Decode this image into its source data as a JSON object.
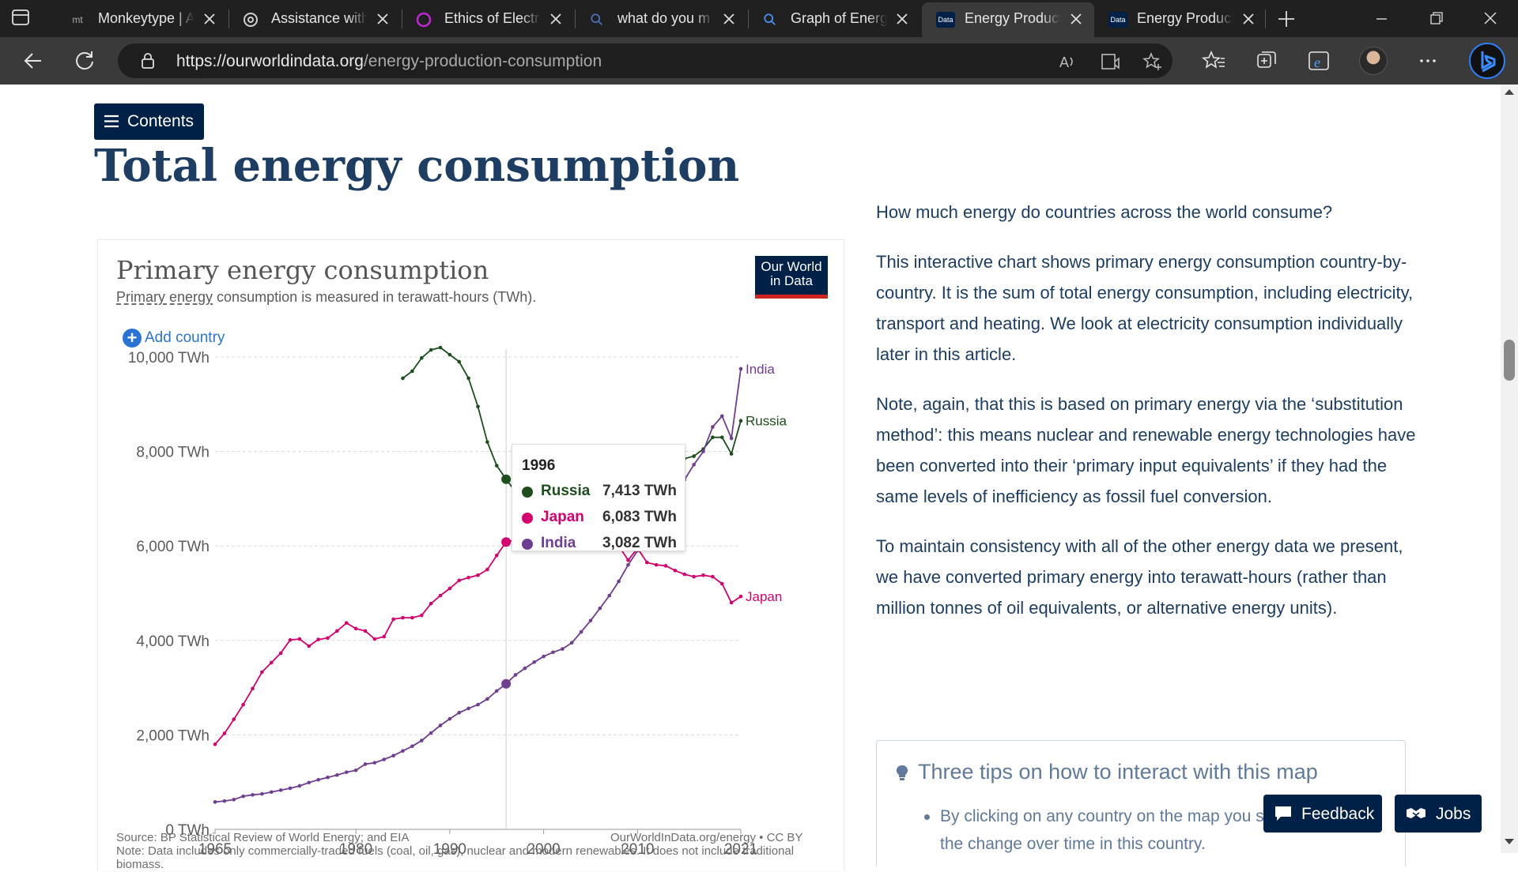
{
  "browser": {
    "tabs": [
      {
        "title": "Monkeytype | A",
        "favicon": "mt"
      },
      {
        "title": "Assistance with",
        "favicon": "chatgpt-icon"
      },
      {
        "title": "Ethics of Electri",
        "favicon": "ring-icon"
      },
      {
        "title": "what do you m",
        "favicon": "search-icon"
      },
      {
        "title": "Graph of Energ",
        "favicon": "search-icon"
      },
      {
        "title": "Energy Product",
        "favicon": "Data",
        "active": true
      },
      {
        "title": "Energy Product",
        "favicon": "Data"
      }
    ],
    "url_host": "https://ourworldindata.org",
    "url_path": "/energy-production-consumption"
  },
  "page": {
    "contents_label": "Contents",
    "title": "Total energy consumption"
  },
  "chart": {
    "title": "Primary energy consumption",
    "subtitle_link": "Primary energy",
    "subtitle_rest": " consumption is measured in terawatt-hours (TWh).",
    "logo_line1": "Our World",
    "logo_line2": "in Data",
    "add_country": "Add country",
    "source": "Source: BP Statistical Review of World Energy; and EIA",
    "note": "Note: Data includes only commercially-traded fuels (coal, oil, gas), nuclear and modern renewables. It does not include traditional biomass.",
    "credit": "OurWorldInData.org/energy • CC BY",
    "tooltip": {
      "year": "1996",
      "rows": [
        {
          "name": "Russia",
          "value": "7,413 TWh",
          "color": "#1e4d1e"
        },
        {
          "name": "Japan",
          "value": "6,083 TWh",
          "color": "#d6006e"
        },
        {
          "name": "India",
          "value": "3,082 TWh",
          "color": "#6d3e91"
        }
      ]
    }
  },
  "chart_data": {
    "type": "line",
    "title": "Primary energy consumption",
    "ylabel": "TWh",
    "ylim": [
      0,
      10000
    ],
    "yticks": [
      "0 TWh",
      "2,000 TWh",
      "4,000 TWh",
      "6,000 TWh",
      "8,000 TWh",
      "10,000 TWh"
    ],
    "xticks": [
      "1965",
      "1980",
      "1990",
      "2000",
      "2010",
      "2021"
    ],
    "grid": true,
    "highlight_year": 1996,
    "series": [
      {
        "name": "Russia",
        "color": "#1e4d1e",
        "x": [
          1985,
          1986,
          1987,
          1988,
          1989,
          1990,
          1991,
          1992,
          1993,
          1994,
          1995,
          1996,
          1997,
          1998,
          1999,
          2000,
          2001,
          2002,
          2003,
          2004,
          2005,
          2006,
          2007,
          2008,
          2009,
          2010,
          2011,
          2012,
          2013,
          2014,
          2015,
          2016,
          2017,
          2018,
          2019,
          2020,
          2021
        ],
        "y": [
          9550,
          9700,
          9980,
          10150,
          10200,
          10050,
          9900,
          9550,
          8950,
          8200,
          7700,
          7413,
          7150,
          7100,
          7250,
          7350,
          7400,
          7450,
          7550,
          7600,
          7650,
          7780,
          7800,
          7850,
          7550,
          7800,
          8050,
          8050,
          7950,
          7950,
          7850,
          7900,
          8050,
          8300,
          8300,
          7950,
          8650
        ]
      },
      {
        "name": "Japan",
        "color": "#d6006e",
        "x": [
          1965,
          1966,
          1967,
          1968,
          1969,
          1970,
          1971,
          1972,
          1973,
          1974,
          1975,
          1976,
          1977,
          1978,
          1979,
          1980,
          1981,
          1982,
          1983,
          1984,
          1985,
          1986,
          1987,
          1988,
          1989,
          1990,
          1991,
          1992,
          1993,
          1994,
          1995,
          1996,
          1997,
          1998,
          1999,
          2000,
          2001,
          2002,
          2003,
          2004,
          2005,
          2006,
          2007,
          2008,
          2009,
          2010,
          2011,
          2012,
          2013,
          2014,
          2015,
          2016,
          2017,
          2018,
          2019,
          2020,
          2021
        ],
        "y": [
          1800,
          2030,
          2330,
          2640,
          2980,
          3330,
          3530,
          3730,
          4010,
          4030,
          3880,
          4020,
          4050,
          4200,
          4370,
          4250,
          4200,
          4030,
          4080,
          4450,
          4480,
          4480,
          4530,
          4780,
          4950,
          5100,
          5270,
          5330,
          5380,
          5500,
          5800,
          6083,
          6130,
          6080,
          6200,
          6300,
          6250,
          6200,
          6180,
          6280,
          6300,
          6250,
          6180,
          6000,
          5700,
          5950,
          5650,
          5600,
          5580,
          5480,
          5400,
          5350,
          5380,
          5350,
          5200,
          4800,
          4930
        ]
      },
      {
        "name": "India",
        "color": "#6d3e91",
        "x": [
          1965,
          1966,
          1967,
          1968,
          1969,
          1970,
          1971,
          1972,
          1973,
          1974,
          1975,
          1976,
          1977,
          1978,
          1979,
          1980,
          1981,
          1982,
          1983,
          1984,
          1985,
          1986,
          1987,
          1988,
          1989,
          1990,
          1991,
          1992,
          1993,
          1994,
          1995,
          1996,
          1997,
          1998,
          1999,
          2000,
          2001,
          2002,
          2003,
          2004,
          2005,
          2006,
          2007,
          2008,
          2009,
          2010,
          2011,
          2012,
          2013,
          2014,
          2015,
          2016,
          2017,
          2018,
          2019,
          2020,
          2021
        ],
        "y": [
          580,
          600,
          630,
          700,
          730,
          750,
          790,
          830,
          870,
          920,
          990,
          1050,
          1100,
          1150,
          1210,
          1250,
          1380,
          1410,
          1480,
          1560,
          1660,
          1760,
          1880,
          2040,
          2200,
          2340,
          2470,
          2560,
          2640,
          2760,
          2930,
          3082,
          3270,
          3410,
          3540,
          3660,
          3750,
          3820,
          3950,
          4180,
          4420,
          4680,
          4950,
          5250,
          5600,
          5900,
          6230,
          6570,
          6750,
          7100,
          7400,
          7720,
          8000,
          8520,
          8750,
          8280,
          9750
        ]
      }
    ]
  },
  "article": {
    "p1": "How much energy do countries across the world consume?",
    "p2": "This interactive chart shows primary energy consumption country-by-country. It is the sum of total energy consumption, including electricity, transport and heating. We look at electricity consumption individually later in this article.",
    "p3": "Note, again, that this is based on primary energy via the ‘substitution method’: this means nuclear and renewable energy technologies have been converted into their ‘primary input equivalents’ if they had the same levels of inefficiency as fossil fuel conversion.",
    "p4": "To maintain consistency with all of the other energy data we present, we have converted primary energy into terawatt-hours (rather than million tonnes of oil equivalents, or alternative energy units).",
    "tips_title": "Three tips on how to interact with this map",
    "tips_item": "By clicking on any country on the map you see the change over time in this country."
  },
  "floating": {
    "feedback": "Feedback",
    "jobs": "Jobs"
  }
}
